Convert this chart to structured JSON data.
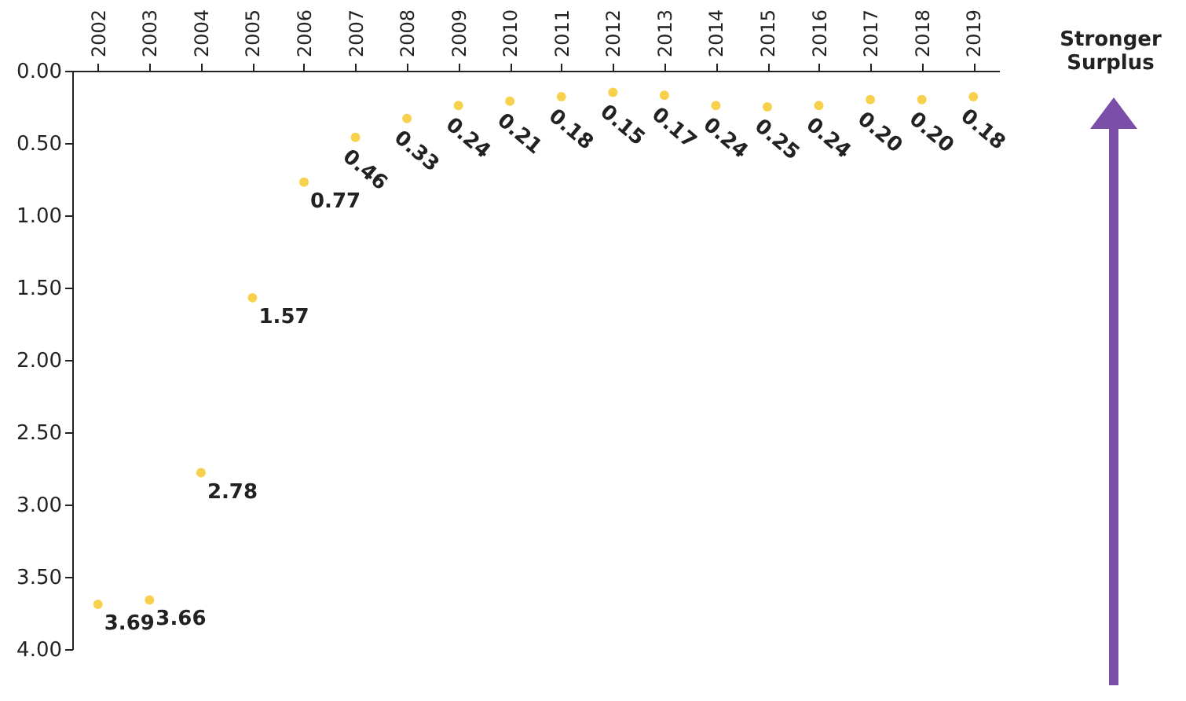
{
  "chart_data": {
    "type": "scatter",
    "categories": [
      "2002",
      "2003",
      "2004",
      "2005",
      "2006",
      "2007",
      "2008",
      "2009",
      "2010",
      "2011",
      "2012",
      "2013",
      "2014",
      "2015",
      "2016",
      "2017",
      "2018",
      "2019"
    ],
    "series": [
      {
        "color": "#f5bd00",
        "values": [
          3.69,
          3.66,
          2.78,
          1.57,
          0.77,
          0.46,
          0.33,
          0.24,
          0.21,
          0.18,
          0.15,
          0.17,
          0.24,
          0.25,
          0.24,
          0.2,
          0.2,
          0.18
        ],
        "value_labels": [
          "3.69",
          "3.66",
          "2.78",
          "1.57",
          "0.77",
          "0.46",
          "0.33",
          "0.24",
          "0.21",
          "0.18",
          "0.15",
          "0.17",
          "0.24",
          "0.25",
          "0.24",
          "0.20",
          "0.20",
          "0.18"
        ]
      }
    ],
    "ylim": [
      4,
      0
    ],
    "yticks": [
      {
        "value": 0,
        "label": "0.00"
      },
      {
        "value": 0.5,
        "label": "0.50"
      },
      {
        "value": 1,
        "label": "1.00"
      },
      {
        "value": 1.5,
        "label": "1.50"
      },
      {
        "value": 2,
        "label": "2.00"
      },
      {
        "value": 2.5,
        "label": "2.50"
      },
      {
        "value": 3,
        "label": "3.00"
      },
      {
        "value": 3.5,
        "label": "3.50"
      },
      {
        "value": 4,
        "label": "4.00"
      }
    ],
    "grid": false,
    "marker": "circle",
    "annotations": [
      "Stronger Surplus"
    ]
  }
}
